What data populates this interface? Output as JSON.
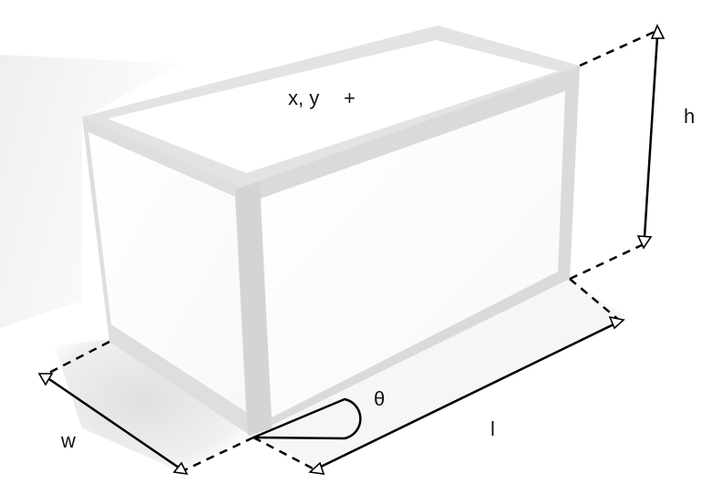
{
  "labels": {
    "center": "x, y",
    "center_marker": "+",
    "height": "h",
    "width": "w",
    "length": "l",
    "angle": "θ"
  },
  "colors": {
    "background": "#ffffff",
    "face": "#ffffff",
    "edge": "#dcdcdc",
    "edge_dark": "#cfcfcf",
    "shadow": "#ececec",
    "line": "#000000",
    "arrowhead_fill": "#ffffff"
  }
}
